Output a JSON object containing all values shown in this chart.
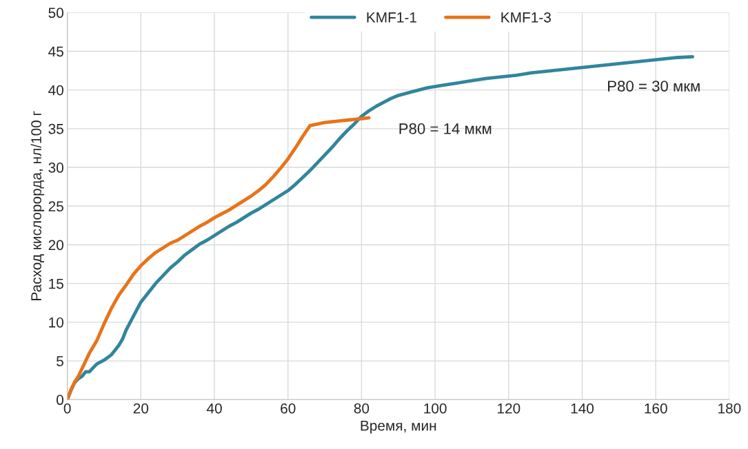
{
  "chart_data": {
    "type": "line",
    "xlabel": "Время, мин",
    "ylabel": "Расход кислорорда, нл/100 г",
    "xlim": [
      0,
      180
    ],
    "xticks": [
      0,
      20,
      40,
      60,
      80,
      100,
      120,
      140,
      160,
      180
    ],
    "ylim": [
      0,
      50
    ],
    "yticks": [
      0,
      5,
      10,
      15,
      20,
      25,
      30,
      35,
      40,
      45,
      50
    ],
    "grid": true,
    "legend": "top",
    "marker": "none",
    "line_style": "solid",
    "series": [
      {
        "name": "KMF1-1",
        "color": "#31859c",
        "x": [
          0,
          1,
          2,
          3,
          4,
          5,
          6,
          7,
          8,
          10,
          12,
          14,
          15,
          16,
          18,
          20,
          22,
          24,
          26,
          28,
          30,
          32,
          34,
          36,
          38,
          40,
          42,
          44,
          46,
          48,
          50,
          52,
          54,
          56,
          58,
          60,
          62,
          64,
          66,
          68,
          70,
          72,
          74,
          76,
          78,
          80,
          82,
          84,
          86,
          88,
          90,
          94,
          98,
          102,
          106,
          110,
          114,
          118,
          122,
          126,
          130,
          134,
          138,
          142,
          146,
          150,
          154,
          158,
          162,
          166,
          170
        ],
        "values": [
          0,
          1.2,
          2.2,
          2.7,
          3.0,
          3.6,
          3.6,
          4.1,
          4.6,
          5.1,
          5.8,
          7.0,
          7.8,
          9.0,
          10.8,
          12.6,
          13.8,
          15.0,
          16.0,
          17.0,
          17.8,
          18.7,
          19.4,
          20.1,
          20.6,
          21.2,
          21.8,
          22.4,
          22.9,
          23.5,
          24.1,
          24.6,
          25.2,
          25.8,
          26.4,
          27.0,
          27.8,
          28.7,
          29.6,
          30.6,
          31.6,
          32.6,
          33.7,
          34.7,
          35.6,
          36.6,
          37.3,
          37.9,
          38.4,
          38.9,
          39.3,
          39.8,
          40.3,
          40.6,
          40.9,
          41.2,
          41.5,
          41.7,
          41.9,
          42.2,
          42.4,
          42.6,
          42.8,
          43.0,
          43.2,
          43.4,
          43.6,
          43.8,
          44.0,
          44.2,
          44.3
        ]
      },
      {
        "name": "KMF1-3",
        "color": "#e8731a",
        "x": [
          0,
          1,
          2,
          3,
          4,
          5,
          6,
          8,
          10,
          12,
          14,
          16,
          18,
          20,
          22,
          24,
          26,
          28,
          30,
          32,
          34,
          36,
          38,
          40,
          42,
          44,
          46,
          48,
          50,
          52,
          54,
          56,
          58,
          60,
          62,
          64,
          66,
          68,
          70,
          72,
          74,
          76,
          78,
          80,
          82
        ],
        "values": [
          0,
          1.3,
          2.3,
          3.0,
          4.0,
          5.0,
          6.0,
          7.6,
          9.8,
          11.8,
          13.5,
          14.8,
          16.2,
          17.3,
          18.2,
          19.0,
          19.6,
          20.2,
          20.6,
          21.2,
          21.8,
          22.4,
          22.9,
          23.5,
          24.0,
          24.5,
          25.1,
          25.7,
          26.3,
          27.0,
          27.8,
          28.8,
          29.9,
          31.1,
          32.5,
          34.0,
          35.4,
          35.6,
          35.8,
          35.9,
          36.0,
          36.1,
          36.2,
          36.3,
          36.4
        ]
      }
    ],
    "annotations": [
      "P80 = 30 мкм",
      "P80 = 14 мкм"
    ]
  }
}
